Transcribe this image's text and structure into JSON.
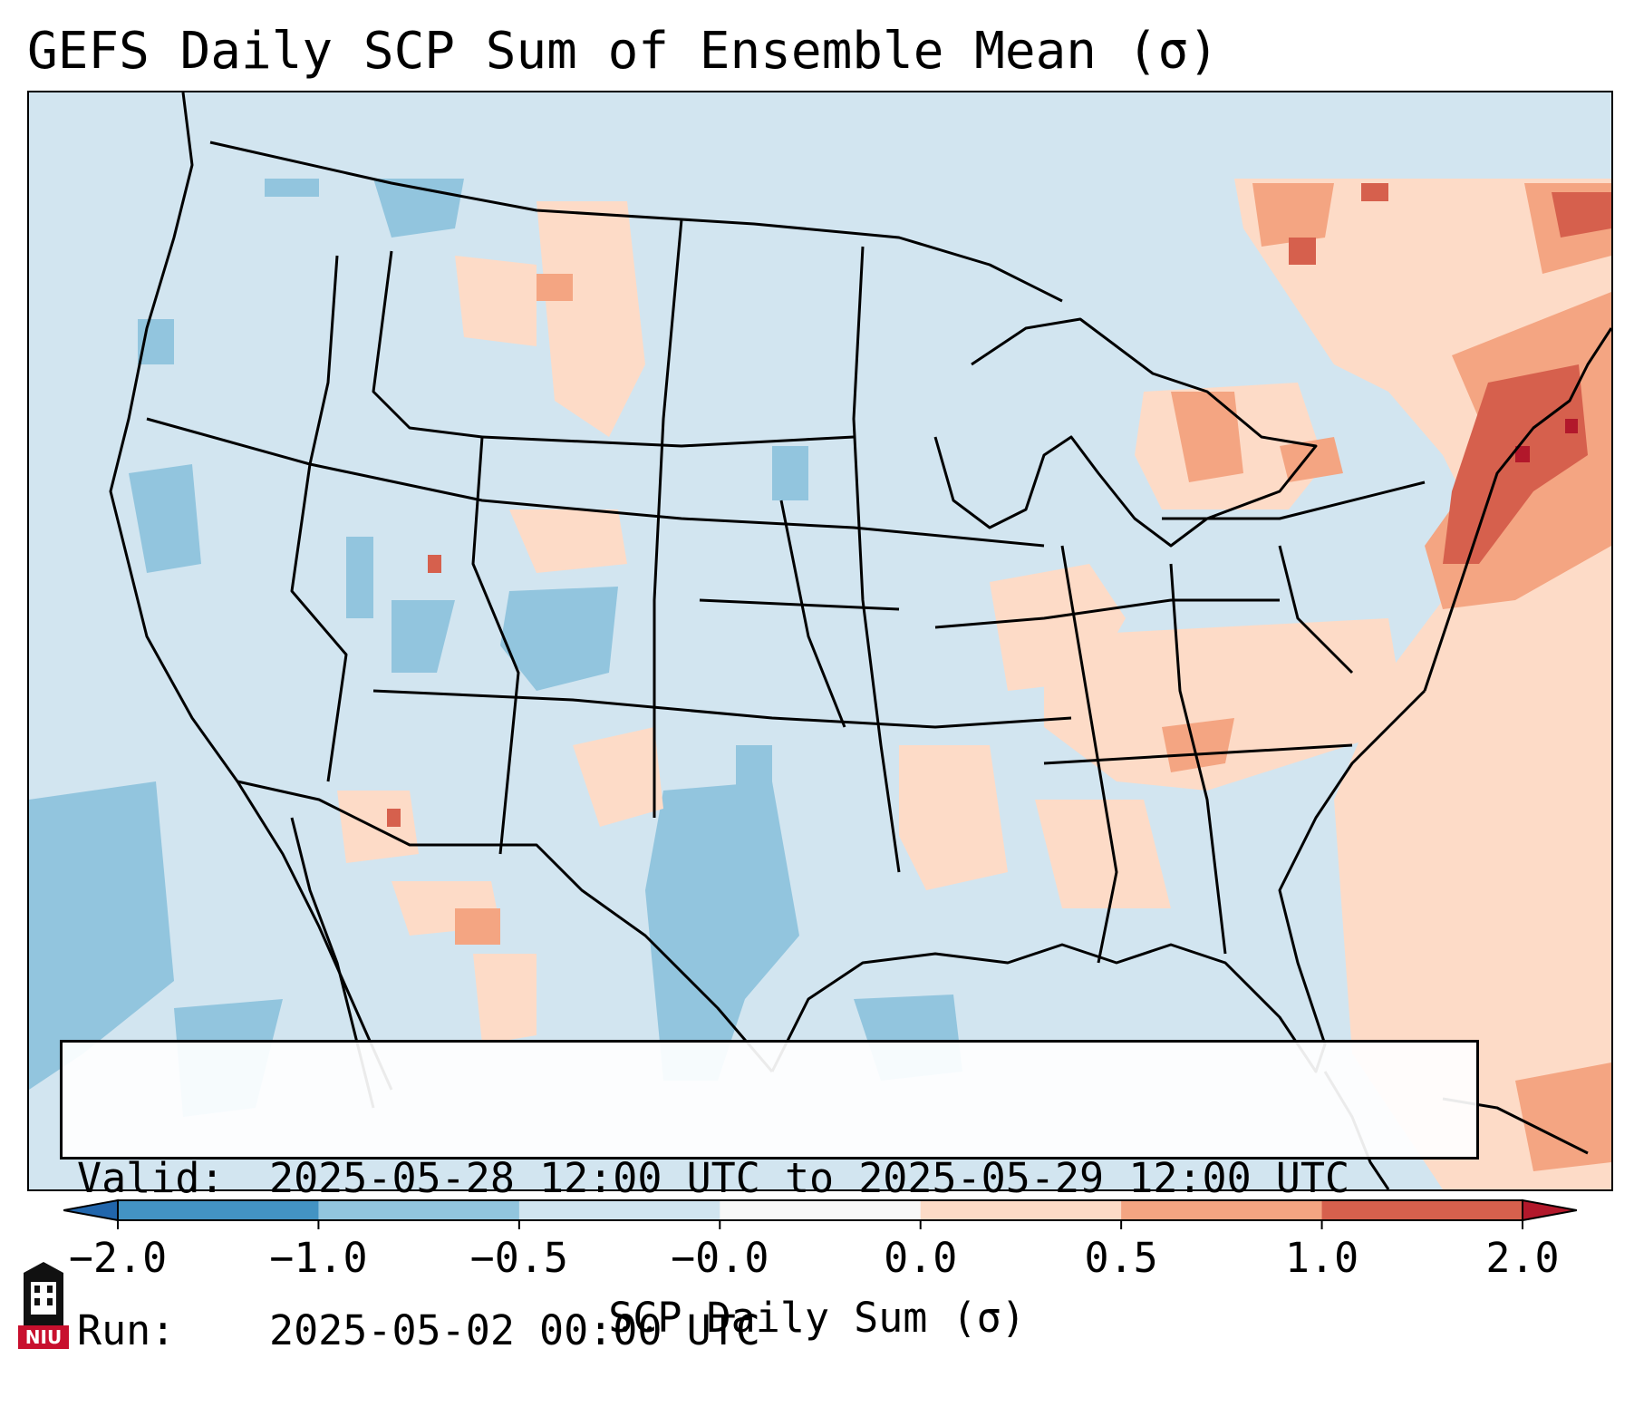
{
  "title": "GEFS Daily SCP Sum of Ensemble Mean (σ)",
  "info": {
    "valid_key": "Valid:",
    "valid_value": "2025-05-28 12:00 UTC to 2025-05-29 12:00 UTC",
    "run_key": "Run:",
    "run_value": "2025-05-02 00:00 UTC"
  },
  "colorbar": {
    "label": "SCP Daily Sum (σ)",
    "ticks": [
      "−2.0",
      "−1.0",
      "−0.5",
      "−0.0",
      "0.0",
      "0.5",
      "1.0",
      "2.0"
    ],
    "bin_colors": [
      "#4393c3",
      "#92c5de",
      "#d1e5f0",
      "#f7f7f7",
      "#fddbc7",
      "#f4a582",
      "#d6604d"
    ],
    "under_color": "#2166ac",
    "over_color": "#b2182b",
    "extend": "both"
  },
  "map": {
    "background_color": "#d2e5f0",
    "region": "CONUS",
    "highest_anomaly_region": "Northeast US / New England"
  },
  "logo": {
    "text": "NIU"
  }
}
